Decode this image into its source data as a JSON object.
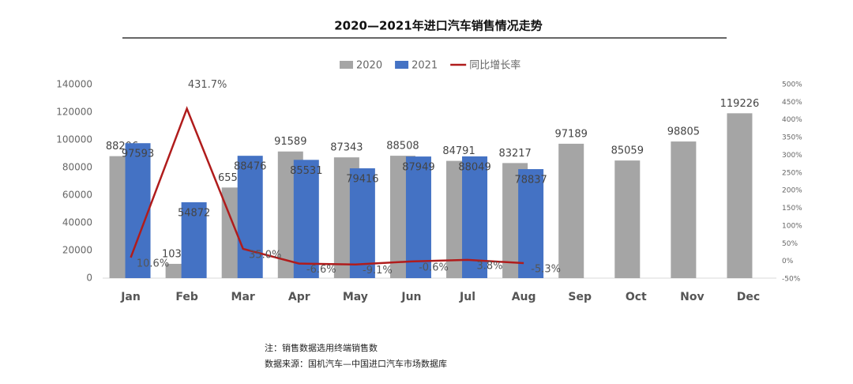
{
  "chart_data": {
    "type": "bar_line",
    "title": "2020—2021年进口汽车销售情况走势",
    "categories": [
      "Jan",
      "Feb",
      "Mar",
      "Apr",
      "May",
      "Jun",
      "Jul",
      "Aug",
      "Sep",
      "Oct",
      "Nov",
      "Dec"
    ],
    "series": [
      {
        "name": "2020",
        "color": "#a5a5a5",
        "type": "bar",
        "values": [
          88206,
          10321,
          65526,
          91589,
          87343,
          88508,
          84791,
          83217,
          97189,
          85059,
          98805,
          119226
        ]
      },
      {
        "name": "2021",
        "color": "#4472c4",
        "type": "bar",
        "values": [
          97593,
          54872,
          88476,
          85531,
          79416,
          87949,
          88049,
          78837,
          null,
          null,
          null,
          null
        ]
      },
      {
        "name": "同比增长率",
        "color": "#b01c1c",
        "type": "line",
        "axis": "y2",
        "values": [
          10.6,
          431.7,
          35.0,
          -6.6,
          -9.1,
          -0.6,
          3.8,
          -5.3,
          null,
          null,
          null,
          null
        ],
        "value_labels": [
          "10.6%",
          "431.7%",
          "35.0%",
          "-6.6%",
          "-9.1%",
          "-0.6%",
          "3.8%",
          "-5.3%",
          null,
          null,
          null,
          null
        ]
      }
    ],
    "ylim": [
      0,
      140000
    ],
    "yticks": [
      0,
      20000,
      40000,
      60000,
      80000,
      100000,
      120000,
      140000
    ],
    "y2lim": [
      -50,
      500
    ],
    "y2ticks": [
      {
        "value": -50,
        "label": "-50%"
      },
      {
        "value": 0,
        "label": "0%"
      },
      {
        "value": 50,
        "label": "50%"
      },
      {
        "value": 100,
        "label": "100%"
      },
      {
        "value": 150,
        "label": "150%"
      },
      {
        "value": 200,
        "label": "200%"
      },
      {
        "value": 250,
        "label": "250%"
      },
      {
        "value": 300,
        "label": "300%"
      },
      {
        "value": 350,
        "label": "350%"
      },
      {
        "value": 400,
        "label": "400%"
      },
      {
        "value": 450,
        "label": "450%"
      },
      {
        "value": 500,
        "label": "500%"
      }
    ],
    "legend": "top",
    "notes": [
      "注：销售数据选用终端销售数",
      "数据来源：国机汽车—中国进口汽车市场数据库"
    ]
  }
}
